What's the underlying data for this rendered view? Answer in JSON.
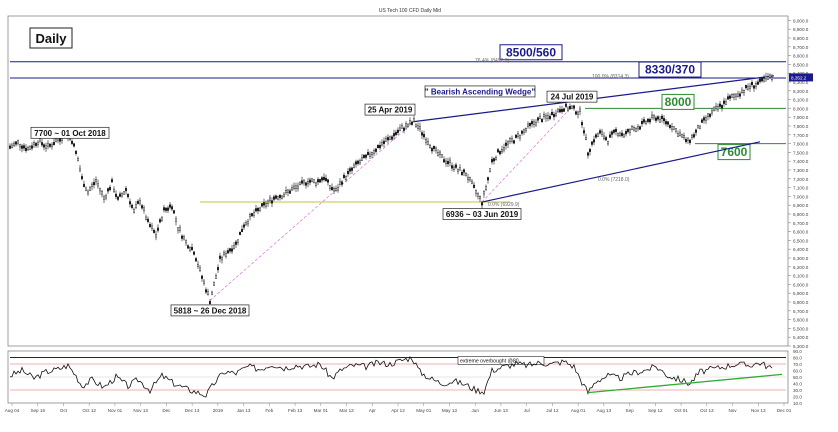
{
  "chart_data": [
    {
      "type": "candlestick",
      "title": "US Tech 100 CFD Daily Mid",
      "timeframe_label": "Daily",
      "ylim": [
        5300,
        9050
      ],
      "y_ticks": [
        "9,000.0",
        "8,900.0",
        "8,800.0",
        "8,700.0",
        "8,600.0",
        "8,500.0",
        "8,400.0",
        "8,300.0",
        "8,200.0",
        "8,100.0",
        "8,000.0",
        "7,900.0",
        "7,800.0",
        "7,700.0",
        "7,600.0",
        "7,500.0",
        "7,400.0",
        "7,300.0",
        "7,200.0",
        "7,100.0",
        "7,000.0",
        "6,900.0",
        "6,800.0",
        "6,700.0",
        "6,600.0",
        "6,500.0",
        "6,400.0",
        "6,300.0",
        "6,200.0",
        "6,100.0",
        "6,000.0",
        "5,900.0",
        "5,800.0",
        "5,700.0",
        "5,600.0",
        "5,500.0",
        "5,400.0",
        "5,300.0"
      ],
      "x_ticks": [
        "Aug 04",
        "Sep 16",
        "Oct",
        "Oct 12",
        "Nov 01",
        "Nov 13",
        "Dec",
        "Dec 13",
        "2019",
        "Jan 13",
        "Feb",
        "Feb 13",
        "Mar 01",
        "Mar 13",
        "Apr",
        "Apr 12",
        "May 01",
        "May 13",
        "Jun",
        "Jun 13",
        "Jul",
        "Jul 12",
        "Aug 01",
        "Aug 13",
        "Sep",
        "Sep 12",
        "Oct 01",
        "Oct 13",
        "Nov",
        "Nov 13",
        "Dec 01"
      ],
      "last_price_label": "8,352.2",
      "price_path": [
        {
          "x": 0,
          "y": 7560
        },
        {
          "x": 8,
          "y": 7610
        },
        {
          "x": 18,
          "y": 7540
        },
        {
          "x": 28,
          "y": 7630
        },
        {
          "x": 38,
          "y": 7560
        },
        {
          "x": 48,
          "y": 7650
        },
        {
          "x": 56,
          "y": 7700
        },
        {
          "x": 62,
          "y": 7640
        },
        {
          "x": 68,
          "y": 7420
        },
        {
          "x": 72,
          "y": 7200
        },
        {
          "x": 78,
          "y": 7050
        },
        {
          "x": 86,
          "y": 7180
        },
        {
          "x": 94,
          "y": 6980
        },
        {
          "x": 102,
          "y": 7150
        },
        {
          "x": 108,
          "y": 6960
        },
        {
          "x": 116,
          "y": 7080
        },
        {
          "x": 124,
          "y": 6820
        },
        {
          "x": 130,
          "y": 6960
        },
        {
          "x": 138,
          "y": 6700
        },
        {
          "x": 146,
          "y": 6560
        },
        {
          "x": 154,
          "y": 6840
        },
        {
          "x": 162,
          "y": 6900
        },
        {
          "x": 168,
          "y": 6650
        },
        {
          "x": 176,
          "y": 6480
        },
        {
          "x": 184,
          "y": 6380
        },
        {
          "x": 190,
          "y": 6150
        },
        {
          "x": 196,
          "y": 5950
        },
        {
          "x": 200,
          "y": 5818
        },
        {
          "x": 204,
          "y": 5990
        },
        {
          "x": 210,
          "y": 6280
        },
        {
          "x": 218,
          "y": 6380
        },
        {
          "x": 226,
          "y": 6460
        },
        {
          "x": 234,
          "y": 6680
        },
        {
          "x": 242,
          "y": 6780
        },
        {
          "x": 250,
          "y": 6860
        },
        {
          "x": 258,
          "y": 6930
        },
        {
          "x": 266,
          "y": 7000
        },
        {
          "x": 274,
          "y": 7020
        },
        {
          "x": 282,
          "y": 7080
        },
        {
          "x": 290,
          "y": 7120
        },
        {
          "x": 298,
          "y": 7180
        },
        {
          "x": 306,
          "y": 7160
        },
        {
          "x": 314,
          "y": 7220
        },
        {
          "x": 320,
          "y": 7110
        },
        {
          "x": 326,
          "y": 7060
        },
        {
          "x": 332,
          "y": 7180
        },
        {
          "x": 340,
          "y": 7280
        },
        {
          "x": 348,
          "y": 7380
        },
        {
          "x": 356,
          "y": 7440
        },
        {
          "x": 364,
          "y": 7520
        },
        {
          "x": 372,
          "y": 7600
        },
        {
          "x": 380,
          "y": 7660
        },
        {
          "x": 388,
          "y": 7740
        },
        {
          "x": 396,
          "y": 7800
        },
        {
          "x": 404,
          "y": 7845
        },
        {
          "x": 410,
          "y": 7760
        },
        {
          "x": 416,
          "y": 7660
        },
        {
          "x": 422,
          "y": 7560
        },
        {
          "x": 428,
          "y": 7480
        },
        {
          "x": 434,
          "y": 7420
        },
        {
          "x": 440,
          "y": 7380
        },
        {
          "x": 448,
          "y": 7300
        },
        {
          "x": 456,
          "y": 7260
        },
        {
          "x": 462,
          "y": 7130
        },
        {
          "x": 468,
          "y": 7010
        },
        {
          "x": 472,
          "y": 6936
        },
        {
          "x": 476,
          "y": 7100
        },
        {
          "x": 482,
          "y": 7400
        },
        {
          "x": 490,
          "y": 7520
        },
        {
          "x": 498,
          "y": 7600
        },
        {
          "x": 506,
          "y": 7660
        },
        {
          "x": 514,
          "y": 7740
        },
        {
          "x": 522,
          "y": 7820
        },
        {
          "x": 530,
          "y": 7880
        },
        {
          "x": 538,
          "y": 7900
        },
        {
          "x": 546,
          "y": 7960
        },
        {
          "x": 554,
          "y": 8010
        },
        {
          "x": 562,
          "y": 8000
        },
        {
          "x": 570,
          "y": 7950
        },
        {
          "x": 574,
          "y": 7760
        },
        {
          "x": 578,
          "y": 7500
        },
        {
          "x": 584,
          "y": 7650
        },
        {
          "x": 590,
          "y": 7720
        },
        {
          "x": 598,
          "y": 7640
        },
        {
          "x": 606,
          "y": 7740
        },
        {
          "x": 614,
          "y": 7700
        },
        {
          "x": 622,
          "y": 7760
        },
        {
          "x": 630,
          "y": 7800
        },
        {
          "x": 638,
          "y": 7860
        },
        {
          "x": 646,
          "y": 7900
        },
        {
          "x": 654,
          "y": 7860
        },
        {
          "x": 662,
          "y": 7800
        },
        {
          "x": 670,
          "y": 7700
        },
        {
          "x": 678,
          "y": 7620
        },
        {
          "x": 684,
          "y": 7700
        },
        {
          "x": 690,
          "y": 7800
        },
        {
          "x": 696,
          "y": 7880
        },
        {
          "x": 702,
          "y": 7950
        },
        {
          "x": 710,
          "y": 8020
        },
        {
          "x": 718,
          "y": 8100
        },
        {
          "x": 726,
          "y": 8150
        },
        {
          "x": 734,
          "y": 8210
        },
        {
          "x": 742,
          "y": 8260
        },
        {
          "x": 750,
          "y": 8290
        },
        {
          "x": 758,
          "y": 8340
        },
        {
          "x": 764,
          "y": 8352
        }
      ],
      "horizontal_lines": [
        {
          "label": "8500/560",
          "value": 8530,
          "color": "#1a1a8c",
          "style": "solid"
        },
        {
          "label": "8330/370",
          "value": 8345,
          "color": "#1a1a8c",
          "style": "solid"
        },
        {
          "label": "8000",
          "value": 8000,
          "color": "#2e8b2e",
          "style": "solid"
        },
        {
          "label": "7600",
          "value": 7600,
          "color": "#2e8b2e",
          "style": "solid"
        },
        {
          "label": "",
          "value": 6936,
          "color": "#b0b000",
          "style": "solid"
        }
      ],
      "trendlines": [
        {
          "name": "wedge-upper",
          "points": [
            [
              404,
              7850
            ],
            [
              764,
              8370
            ]
          ],
          "color": "#1a1a8c"
        },
        {
          "name": "wedge-lower",
          "points": [
            [
              472,
              6936
            ],
            [
              750,
              7620
            ]
          ],
          "color": "#1a1a8c"
        },
        {
          "name": "fib-base-1",
          "points": [
            [
              200,
              5818
            ],
            [
              404,
              7850
            ]
          ],
          "color": "#e070e0",
          "style": "dashed"
        },
        {
          "name": "fib-base-2",
          "points": [
            [
              472,
              6936
            ],
            [
              562,
              8020
            ]
          ],
          "color": "#e070e0",
          "style": "dashed"
        }
      ],
      "annotations": [
        {
          "text": "7700 ~ 01 Oct 2018",
          "x": 62,
          "y": 7700
        },
        {
          "text": "25 Apr 2019",
          "x": 404,
          "y": 7850
        },
        {
          "text": "\" Bearish Ascending Wedge\"",
          "x": 472,
          "y": 8180
        },
        {
          "text": "24 Jul 2019",
          "x": 562,
          "y": 8020
        },
        {
          "text": "5818 ~ 26 Dec 2018",
          "x": 200,
          "y": 5818
        },
        {
          "text": "6936 ~ 03 Jun 2019",
          "x": 472,
          "y": 6936
        },
        {
          "text": "76.4% (8492.9)",
          "x": 520,
          "y": 8530
        },
        {
          "text": "100.0% (8314.3)",
          "x": 620,
          "y": 8345
        },
        {
          "text": "0.0% (6929.9)",
          "x": 478,
          "y": 6936
        },
        {
          "text": "0.0% (7218.0)",
          "x": 588,
          "y": 7218
        }
      ]
    },
    {
      "type": "line",
      "title": "RSI",
      "ylim": [
        10,
        90
      ],
      "y_ticks": [
        "90.0",
        "80.0",
        "70.0",
        "60.0",
        "50.0",
        "40.0",
        "30.0",
        "20.0",
        "10.0"
      ],
      "annotation": "extreme overbought @80",
      "reference_lines": [
        80,
        70,
        50,
        30
      ],
      "rsi_path": [
        {
          "x": 0,
          "y": 52
        },
        {
          "x": 12,
          "y": 60
        },
        {
          "x": 24,
          "y": 48
        },
        {
          "x": 36,
          "y": 58
        },
        {
          "x": 48,
          "y": 62
        },
        {
          "x": 58,
          "y": 68
        },
        {
          "x": 66,
          "y": 52
        },
        {
          "x": 72,
          "y": 36
        },
        {
          "x": 82,
          "y": 46
        },
        {
          "x": 94,
          "y": 34
        },
        {
          "x": 106,
          "y": 50
        },
        {
          "x": 118,
          "y": 36
        },
        {
          "x": 128,
          "y": 46
        },
        {
          "x": 140,
          "y": 30
        },
        {
          "x": 152,
          "y": 52
        },
        {
          "x": 164,
          "y": 40
        },
        {
          "x": 176,
          "y": 32
        },
        {
          "x": 188,
          "y": 26
        },
        {
          "x": 196,
          "y": 22
        },
        {
          "x": 204,
          "y": 40
        },
        {
          "x": 214,
          "y": 58
        },
        {
          "x": 226,
          "y": 56
        },
        {
          "x": 238,
          "y": 66
        },
        {
          "x": 250,
          "y": 62
        },
        {
          "x": 262,
          "y": 70
        },
        {
          "x": 274,
          "y": 64
        },
        {
          "x": 286,
          "y": 68
        },
        {
          "x": 298,
          "y": 66
        },
        {
          "x": 310,
          "y": 70
        },
        {
          "x": 322,
          "y": 48
        },
        {
          "x": 332,
          "y": 62
        },
        {
          "x": 344,
          "y": 68
        },
        {
          "x": 356,
          "y": 66
        },
        {
          "x": 368,
          "y": 72
        },
        {
          "x": 380,
          "y": 70
        },
        {
          "x": 392,
          "y": 76
        },
        {
          "x": 402,
          "y": 80
        },
        {
          "x": 410,
          "y": 58
        },
        {
          "x": 420,
          "y": 48
        },
        {
          "x": 432,
          "y": 40
        },
        {
          "x": 444,
          "y": 44
        },
        {
          "x": 456,
          "y": 38
        },
        {
          "x": 466,
          "y": 30
        },
        {
          "x": 474,
          "y": 28
        },
        {
          "x": 482,
          "y": 60
        },
        {
          "x": 494,
          "y": 66
        },
        {
          "x": 506,
          "y": 70
        },
        {
          "x": 518,
          "y": 68
        },
        {
          "x": 530,
          "y": 72
        },
        {
          "x": 542,
          "y": 70
        },
        {
          "x": 554,
          "y": 74
        },
        {
          "x": 564,
          "y": 66
        },
        {
          "x": 572,
          "y": 42
        },
        {
          "x": 578,
          "y": 26
        },
        {
          "x": 586,
          "y": 44
        },
        {
          "x": 598,
          "y": 52
        },
        {
          "x": 610,
          "y": 48
        },
        {
          "x": 622,
          "y": 56
        },
        {
          "x": 634,
          "y": 60
        },
        {
          "x": 646,
          "y": 66
        },
        {
          "x": 658,
          "y": 52
        },
        {
          "x": 670,
          "y": 46
        },
        {
          "x": 680,
          "y": 40
        },
        {
          "x": 690,
          "y": 58
        },
        {
          "x": 702,
          "y": 62
        },
        {
          "x": 714,
          "y": 66
        },
        {
          "x": 726,
          "y": 70
        },
        {
          "x": 738,
          "y": 68
        },
        {
          "x": 750,
          "y": 72
        },
        {
          "x": 758,
          "y": 66
        },
        {
          "x": 764,
          "y": 62
        }
      ],
      "trendlines": [
        {
          "name": "rsi-support",
          "points": [
            [
              578,
              26
            ],
            [
              772,
              54
            ]
          ],
          "color": "#33aa33"
        }
      ]
    }
  ]
}
